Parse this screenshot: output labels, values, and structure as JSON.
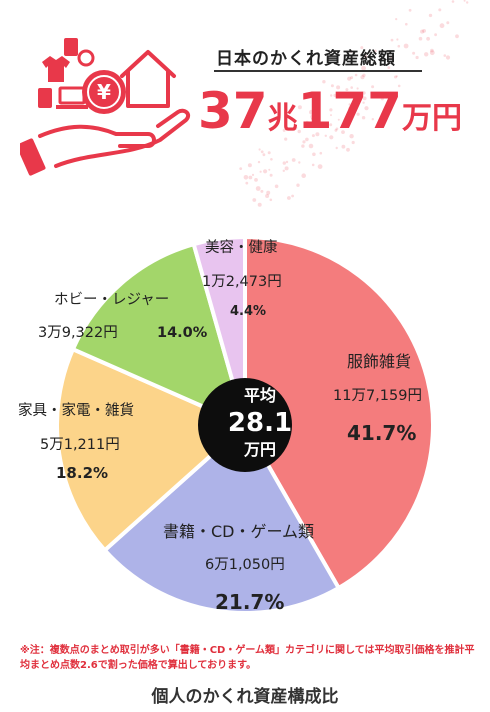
{
  "header": {
    "label": "日本のかくれ資産総額",
    "total_num1": "37",
    "total_unit1": "兆",
    "total_num2": "177",
    "total_unit2": "万円"
  },
  "center": {
    "line1": "平均",
    "line2": "28.1",
    "line3": "万円"
  },
  "note": "※注：複数点のまとめ取引が多い「書籍・CD・ゲーム類」カテゴリに関しては平均取引価格を推計平均まとめ点数2.6で割った価格で算出しております。",
  "footer_title": "個人のかくれ資産構成比",
  "colors": {
    "accent": "#e8384a",
    "center_disc": "#0d0d0d"
  },
  "chart_data": {
    "type": "pie",
    "title": "",
    "slices": [
      {
        "label": "服飾雑貨",
        "amount": "11万7,159円",
        "percent_label": "41.7%",
        "value": 41.7,
        "color": "#f47c7d"
      },
      {
        "label": "書籍・CD・ゲーム類",
        "amount": "6万1,050円",
        "percent_label": "21.7%",
        "value": 21.7,
        "color": "#aeb3e8"
      },
      {
        "label": "家具・家電・雑貨",
        "amount": "5万1,211円",
        "percent_label": "18.2%",
        "value": 18.2,
        "color": "#fcd48a"
      },
      {
        "label": "ホビー・レジャー",
        "amount": "3万9,322円",
        "percent_label": "14.0%",
        "value": 14.0,
        "color": "#a3d66a"
      },
      {
        "label": "美容・健康",
        "amount": "1万2,473円",
        "percent_label": "4.4%",
        "value": 4.4,
        "color": "#e8c4ef"
      }
    ]
  }
}
